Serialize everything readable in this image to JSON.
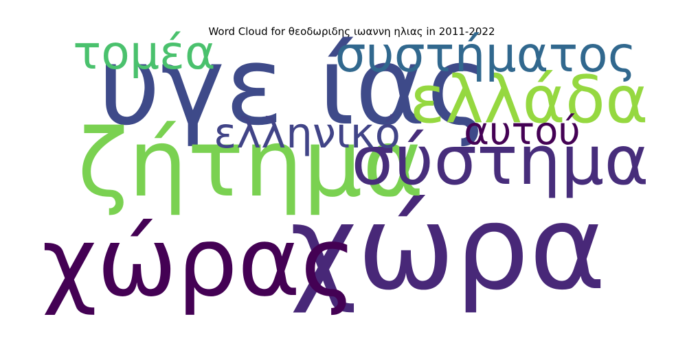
{
  "chart_data": {
    "type": "wordcloud",
    "title": "Word Cloud for θεοδωριδης ιωαννη ηλιας in 2011-2022",
    "words": [
      {
        "text": "χώρα",
        "weight": 1.0,
        "color": "#482878"
      },
      {
        "text": "υγε ίας",
        "weight": 0.93,
        "color": "#3e4a89"
      },
      {
        "text": "χώρας",
        "weight": 0.82,
        "color": "#440154"
      },
      {
        "text": "ζήτημα",
        "weight": 0.8,
        "color": "#7ad151"
      },
      {
        "text": "σύστημα",
        "weight": 0.58,
        "color": "#472d7b"
      },
      {
        "text": "ελλάδα",
        "weight": 0.56,
        "color": "#95d840"
      },
      {
        "text": "συστήματος",
        "weight": 0.42,
        "color": "#31688e"
      },
      {
        "text": "τομέα",
        "weight": 0.4,
        "color": "#4ac16d"
      },
      {
        "text": "ελληνικό",
        "weight": 0.36,
        "color": "#414487"
      },
      {
        "text": "αυτού",
        "weight": 0.33,
        "color": "#440154"
      }
    ]
  }
}
